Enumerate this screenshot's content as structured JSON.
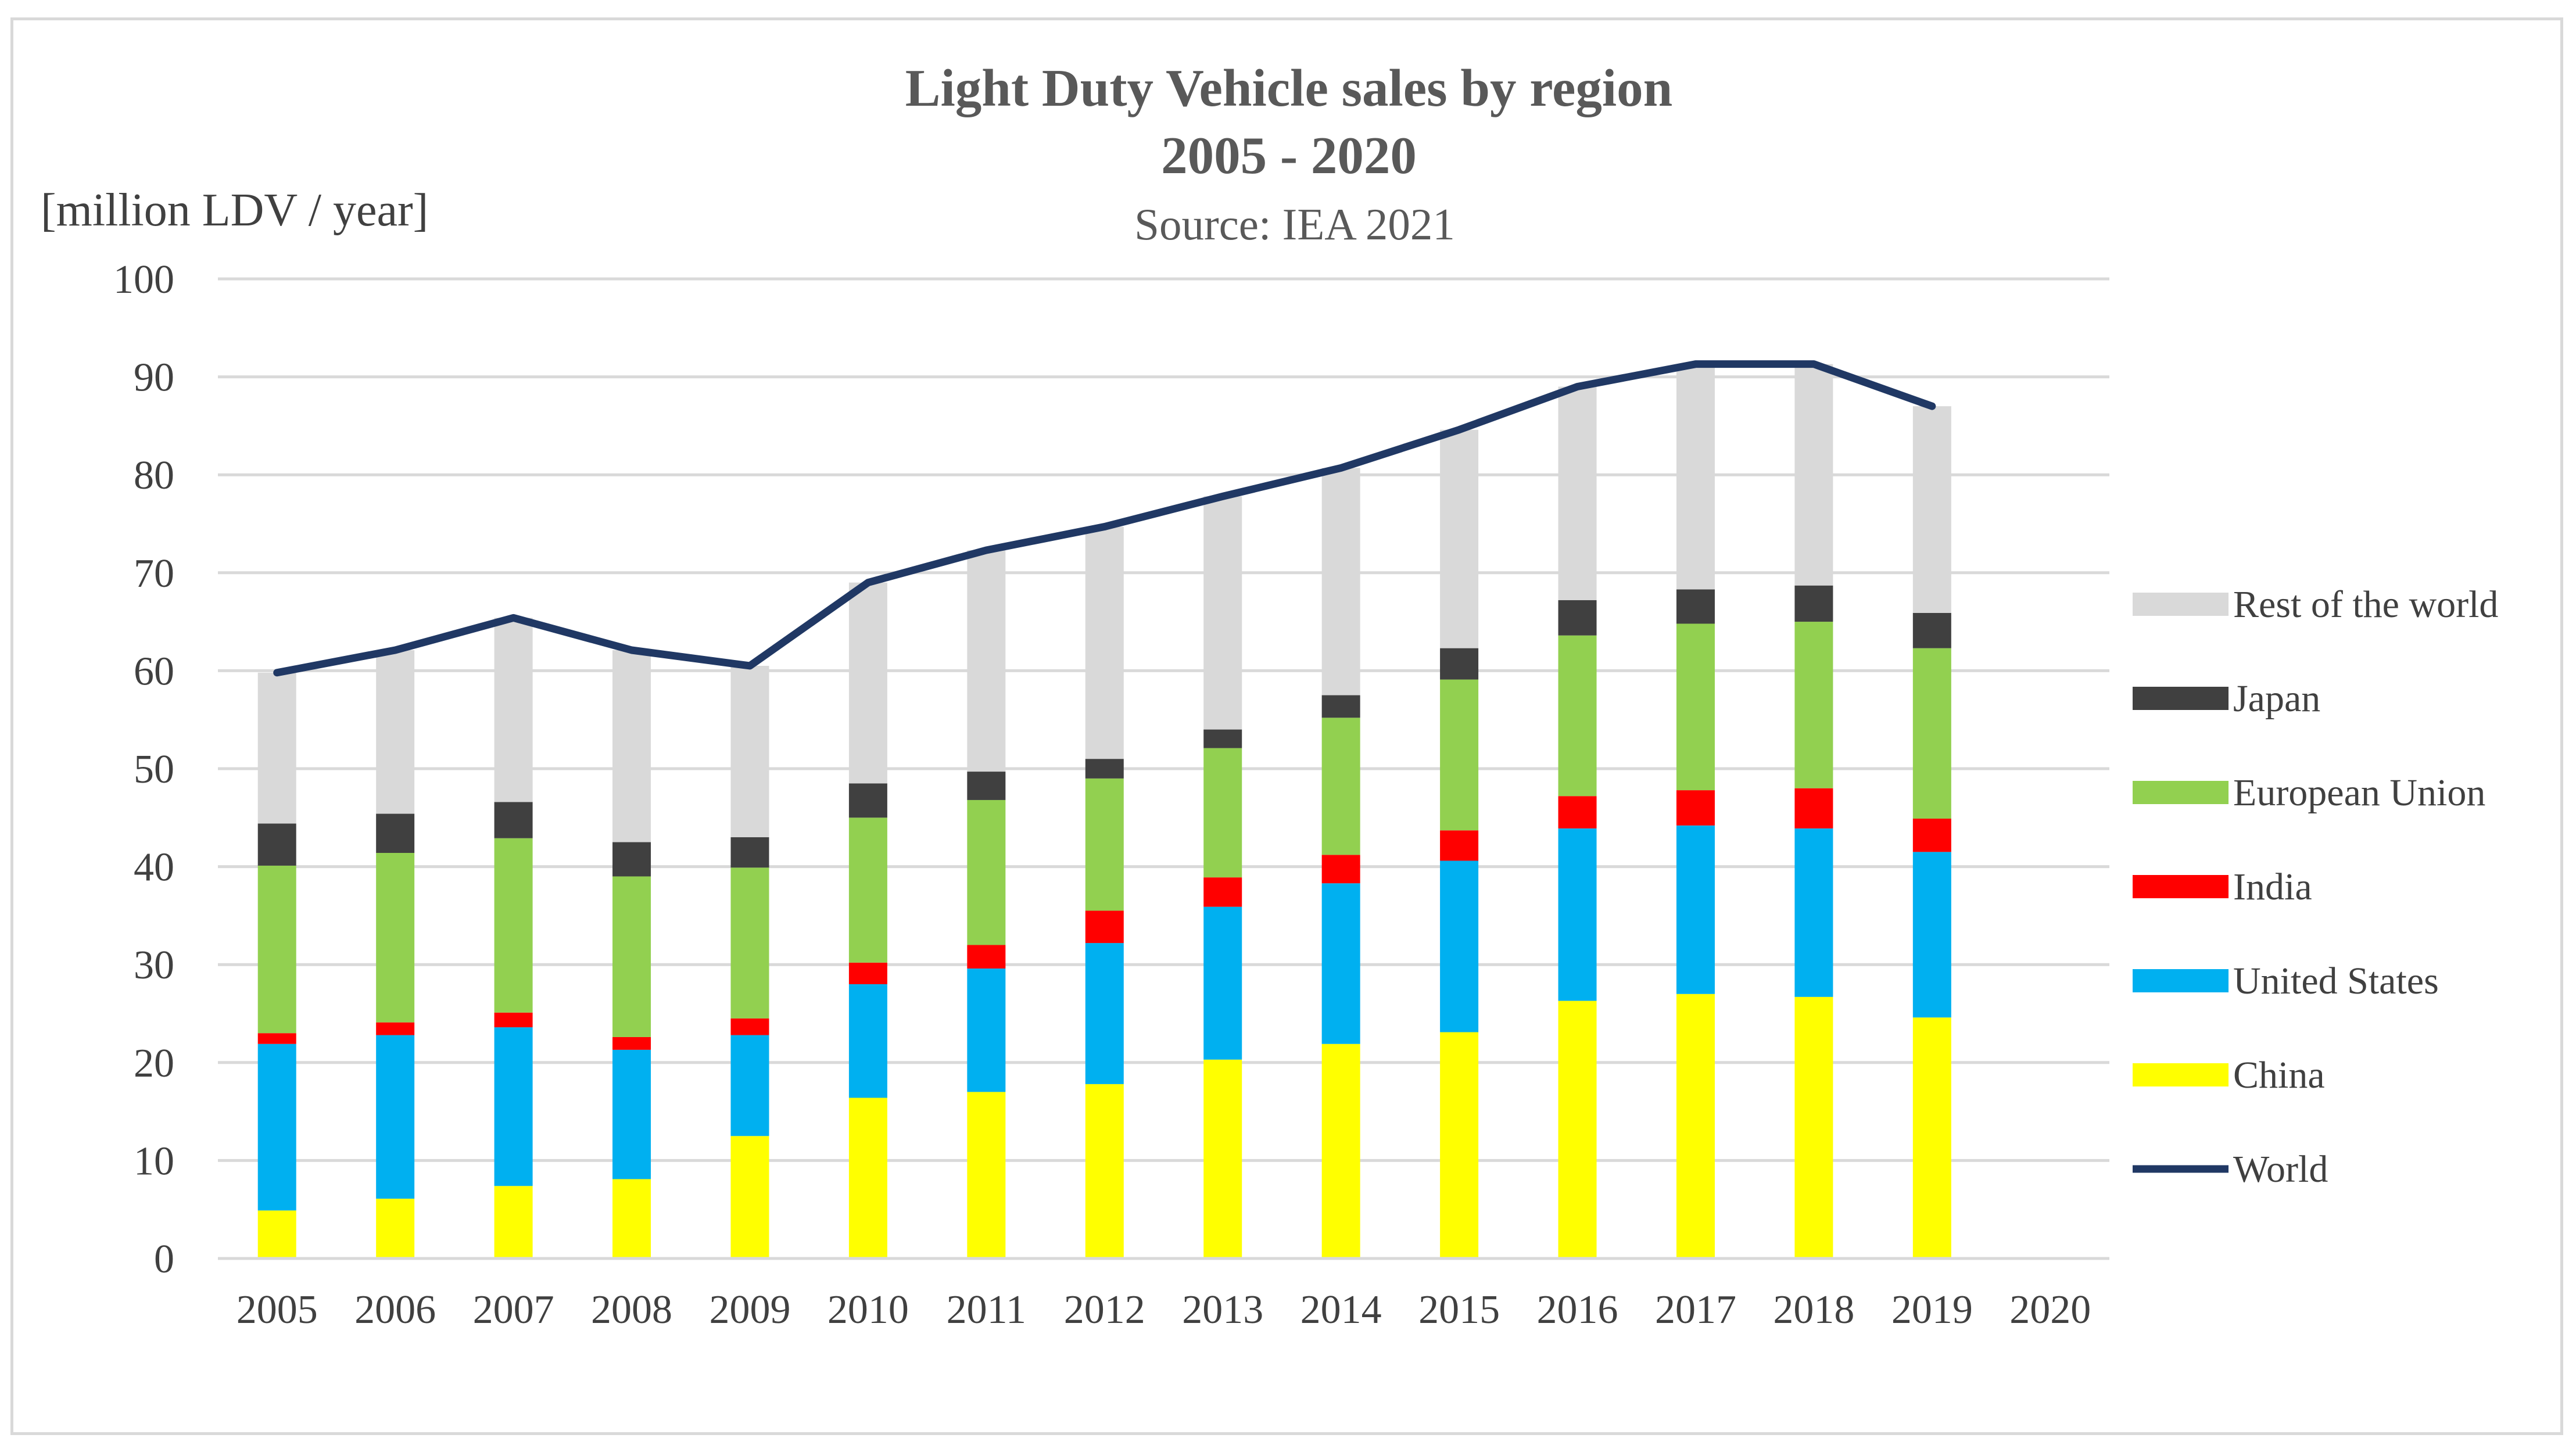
{
  "chart_data": {
    "type": "bar",
    "stacked": true,
    "title": "Light Duty Vehicle sales by region",
    "title_line2": "2005 - 2020",
    "subtitle": "Source: IEA 2021",
    "ylabel": "[million LDV / year]",
    "xlabel": "",
    "ylim": [
      0,
      100
    ],
    "y_ticks": [
      0,
      10,
      20,
      30,
      40,
      50,
      60,
      70,
      80,
      90,
      100
    ],
    "grid": true,
    "legend_position": "right",
    "categories": [
      "2005",
      "2006",
      "2007",
      "2008",
      "2009",
      "2010",
      "2011",
      "2012",
      "2013",
      "2014",
      "2015",
      "2016",
      "2017",
      "2018",
      "2019",
      "2020"
    ],
    "series": [
      {
        "name": "China",
        "color": "#ffff00",
        "values": [
          4.9,
          6.1,
          7.4,
          8.1,
          12.5,
          16.4,
          17.0,
          17.8,
          20.3,
          21.9,
          23.1,
          26.3,
          27.0,
          26.7,
          24.6,
          null
        ]
      },
      {
        "name": "United States",
        "color": "#00b0f0",
        "values": [
          17.0,
          16.7,
          16.2,
          13.2,
          10.3,
          11.6,
          12.6,
          14.4,
          15.6,
          16.4,
          17.5,
          17.6,
          17.2,
          17.2,
          16.9,
          null
        ]
      },
      {
        "name": "India",
        "color": "#ff0000",
        "values": [
          1.1,
          1.3,
          1.5,
          1.3,
          1.7,
          2.2,
          2.4,
          3.3,
          3.0,
          2.9,
          3.1,
          3.3,
          3.6,
          4.1,
          3.4,
          null
        ]
      },
      {
        "name": "European Union",
        "color": "#92d050",
        "values": [
          17.1,
          17.3,
          17.8,
          16.4,
          15.4,
          14.8,
          14.8,
          13.5,
          13.2,
          14.0,
          15.4,
          16.4,
          17.0,
          17.0,
          17.4,
          null
        ]
      },
      {
        "name": "Japan",
        "color": "#404040",
        "values": [
          4.3,
          4.0,
          3.7,
          3.5,
          3.1,
          3.5,
          2.9,
          2.0,
          1.9,
          2.3,
          3.2,
          3.6,
          3.5,
          3.7,
          3.6,
          null
        ]
      },
      {
        "name": "Rest of the world",
        "color": "#d9d9d9",
        "values": [
          15.4,
          16.7,
          18.8,
          19.6,
          17.5,
          20.5,
          22.6,
          23.7,
          23.8,
          23.2,
          22.3,
          21.8,
          23.0,
          22.6,
          21.1,
          null
        ]
      }
    ],
    "line_series": {
      "name": "World",
      "color": "#203864",
      "values": [
        59.8,
        62.1,
        65.4,
        62.1,
        60.5,
        69.0,
        72.3,
        74.7,
        77.8,
        80.7,
        84.6,
        89.0,
        91.3,
        91.3,
        87.0,
        null
      ]
    },
    "legend": [
      "Rest of the world",
      "Japan",
      "European Union",
      "India",
      "United States",
      "China",
      "World"
    ]
  }
}
